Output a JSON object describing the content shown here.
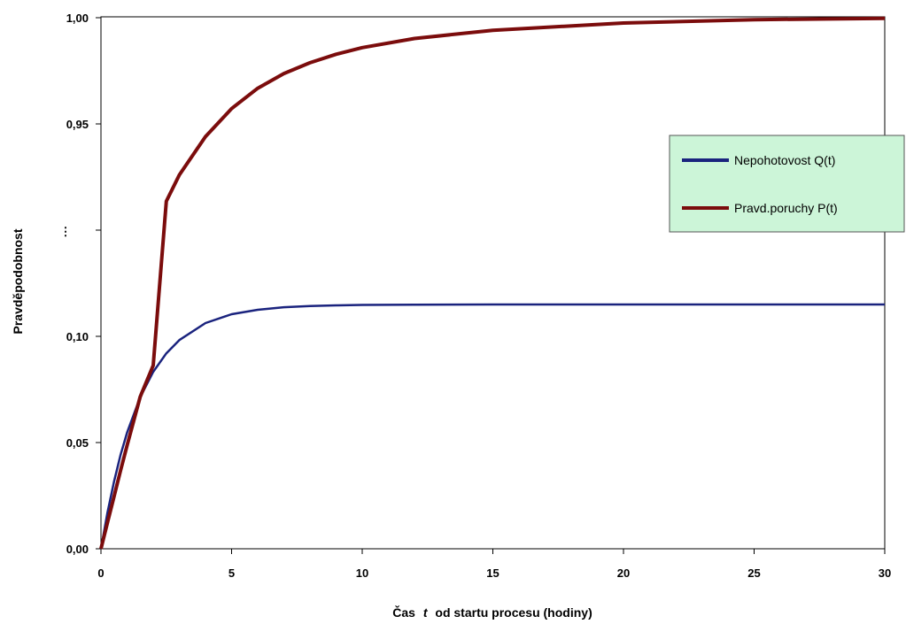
{
  "chart_data": {
    "type": "line",
    "title": "",
    "xlabel_prefix": "Čas",
    "xlabel_var": "t",
    "xlabel_suffix": "od startu procesu (hodiny)",
    "ylabel": "Pravděpodobnost",
    "x_ticks": [
      "0",
      "5",
      "10",
      "15",
      "20",
      "25",
      "30"
    ],
    "y_ticks": [
      "0,00",
      "0,05",
      "0,10",
      "",
      "0,95",
      "1,00"
    ],
    "y_break_marker": "⋮",
    "xlim": [
      0,
      30
    ],
    "y_scale": "broken",
    "grid": false,
    "legend_position": "right",
    "series": [
      {
        "name": "Nepohotovost Q(t)",
        "color": "#1a237e",
        "x": [
          0,
          0.25,
          0.5,
          0.75,
          1,
          1.5,
          2,
          2.5,
          3,
          4,
          5,
          6,
          7,
          8,
          9,
          10,
          12,
          15,
          20,
          25,
          30
        ],
        "y": [
          0,
          0.0172,
          0.0318,
          0.0443,
          0.0549,
          0.0716,
          0.0836,
          0.0923,
          0.0986,
          0.1066,
          0.1108,
          0.1129,
          0.1141,
          0.1147,
          0.115,
          0.1152,
          0.1153,
          0.1154,
          0.1154,
          0.1154,
          0.1154
        ]
      },
      {
        "name": "Pravd.poruchy P(t)",
        "color": "#7b0c0c",
        "x": [
          0,
          0.25,
          0.5,
          0.75,
          1,
          1.5,
          2,
          2.5,
          3,
          4,
          5,
          6,
          7,
          8,
          9,
          10,
          12,
          15,
          20,
          25,
          30
        ],
        "y": [
          0,
          0.0124,
          0.0247,
          0.0369,
          0.0488,
          0.0718,
          0.0866,
          0.9136,
          0.926,
          0.944,
          0.9572,
          0.9668,
          0.9737,
          0.9788,
          0.9828,
          0.9859,
          0.9902,
          0.9941,
          0.9975,
          0.9991,
          0.9997
        ]
      }
    ],
    "notes": "Y axis is broken: lower segment 0–0.12 and upper segment 0.90–1.00; the P(t) curve crosses the break around t≈2.3"
  },
  "colors": {
    "background": "#ffffff",
    "axis": "#000000",
    "legend_bg": "#ccf5d8",
    "legend_border": "#555555"
  }
}
